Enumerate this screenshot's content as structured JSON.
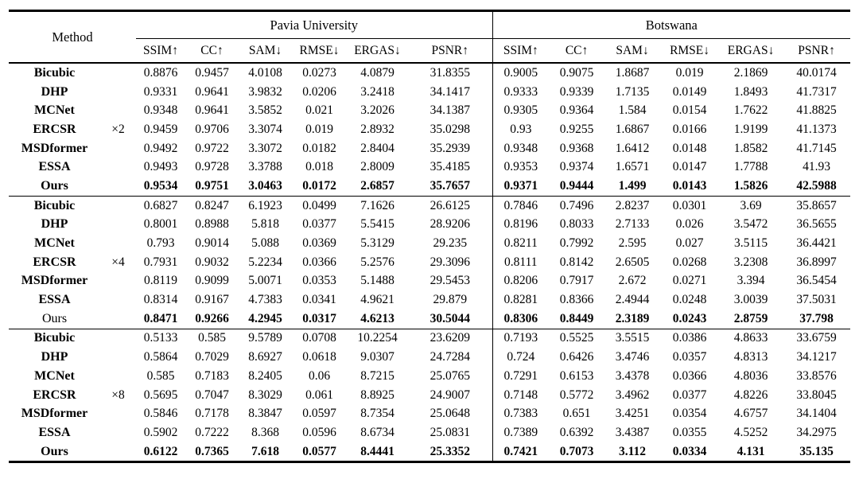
{
  "header": {
    "method_label": "Method",
    "groups": [
      {
        "label": "Pavia University"
      },
      {
        "label": "Botswana"
      }
    ],
    "metrics": [
      "SSIM↑",
      "CC↑",
      "SAM↓",
      "RMSE↓",
      "ERGAS↓",
      "PSNR↑"
    ]
  },
  "sections": [
    {
      "scale": "×2",
      "rows": [
        {
          "method": "Bicubic",
          "method_bold": true,
          "values_bold": false,
          "pavia": [
            "0.8876",
            "0.9457",
            "4.0108",
            "0.0273",
            "4.0879",
            "31.8355"
          ],
          "botswana": [
            "0.9005",
            "0.9075",
            "1.8687",
            "0.019",
            "2.1869",
            "40.0174"
          ]
        },
        {
          "method": "DHP",
          "method_bold": true,
          "values_bold": false,
          "pavia": [
            "0.9331",
            "0.9641",
            "3.9832",
            "0.0206",
            "3.2418",
            "34.1417"
          ],
          "botswana": [
            "0.9333",
            "0.9339",
            "1.7135",
            "0.0149",
            "1.8493",
            "41.7317"
          ]
        },
        {
          "method": "MCNet",
          "method_bold": true,
          "values_bold": false,
          "pavia": [
            "0.9348",
            "0.9641",
            "3.5852",
            "0.021",
            "3.2026",
            "34.1387"
          ],
          "botswana": [
            "0.9305",
            "0.9364",
            "1.584",
            "0.0154",
            "1.7622",
            "41.8825"
          ]
        },
        {
          "method": "ERCSR",
          "method_bold": true,
          "values_bold": false,
          "pavia": [
            "0.9459",
            "0.9706",
            "3.3074",
            "0.019",
            "2.8932",
            "35.0298"
          ],
          "botswana": [
            "0.93",
            "0.9255",
            "1.6867",
            "0.0166",
            "1.9199",
            "41.1373"
          ]
        },
        {
          "method": "MSDformer",
          "method_bold": true,
          "values_bold": false,
          "pavia": [
            "0.9492",
            "0.9722",
            "3.3072",
            "0.0182",
            "2.8404",
            "35.2939"
          ],
          "botswana": [
            "0.9348",
            "0.9368",
            "1.6412",
            "0.0148",
            "1.8582",
            "41.7145"
          ]
        },
        {
          "method": "ESSA",
          "method_bold": true,
          "values_bold": false,
          "pavia": [
            "0.9493",
            "0.9728",
            "3.3788",
            "0.018",
            "2.8009",
            "35.4185"
          ],
          "botswana": [
            "0.9353",
            "0.9374",
            "1.6571",
            "0.0147",
            "1.7788",
            "41.93"
          ]
        },
        {
          "method": "Ours",
          "method_bold": true,
          "values_bold": true,
          "pavia": [
            "0.9534",
            "0.9751",
            "3.0463",
            "0.0172",
            "2.6857",
            "35.7657"
          ],
          "botswana": [
            "0.9371",
            "0.9444",
            "1.499",
            "0.0143",
            "1.5826",
            "42.5988"
          ]
        }
      ]
    },
    {
      "scale": "×4",
      "rows": [
        {
          "method": "Bicubic",
          "method_bold": true,
          "values_bold": false,
          "pavia": [
            "0.6827",
            "0.8247",
            "6.1923",
            "0.0499",
            "7.1626",
            "26.6125"
          ],
          "botswana": [
            "0.7846",
            "0.7496",
            "2.8237",
            "0.0301",
            "3.69",
            "35.8657"
          ]
        },
        {
          "method": "DHP",
          "method_bold": true,
          "values_bold": false,
          "pavia": [
            "0.8001",
            "0.8988",
            "5.818",
            "0.0377",
            "5.5415",
            "28.9206"
          ],
          "botswana": [
            "0.8196",
            "0.8033",
            "2.7133",
            "0.026",
            "3.5472",
            "36.5655"
          ]
        },
        {
          "method": "MCNet",
          "method_bold": true,
          "values_bold": false,
          "pavia": [
            "0.793",
            "0.9014",
            "5.088",
            "0.0369",
            "5.3129",
            "29.235"
          ],
          "botswana": [
            "0.8211",
            "0.7992",
            "2.595",
            "0.027",
            "3.5115",
            "36.4421"
          ]
        },
        {
          "method": "ERCSR",
          "method_bold": true,
          "values_bold": false,
          "pavia": [
            "0.7931",
            "0.9032",
            "5.2234",
            "0.0366",
            "5.2576",
            "29.3096"
          ],
          "botswana": [
            "0.8111",
            "0.8142",
            "2.6505",
            "0.0268",
            "3.2308",
            "36.8997"
          ]
        },
        {
          "method": "MSDformer",
          "method_bold": true,
          "values_bold": false,
          "pavia": [
            "0.8119",
            "0.9099",
            "5.0071",
            "0.0353",
            "5.1488",
            "29.5453"
          ],
          "botswana": [
            "0.8206",
            "0.7917",
            "2.672",
            "0.0271",
            "3.394",
            "36.5454"
          ]
        },
        {
          "method": "ESSA",
          "method_bold": true,
          "values_bold": false,
          "pavia": [
            "0.8314",
            "0.9167",
            "4.7383",
            "0.0341",
            "4.9621",
            "29.879"
          ],
          "botswana": [
            "0.8281",
            "0.8366",
            "2.4944",
            "0.0248",
            "3.0039",
            "37.5031"
          ]
        },
        {
          "method": "Ours",
          "method_bold": false,
          "values_bold": true,
          "pavia": [
            "0.8471",
            "0.9266",
            "4.2945",
            "0.0317",
            "4.6213",
            "30.5044"
          ],
          "botswana": [
            "0.8306",
            "0.8449",
            "2.3189",
            "0.0243",
            "2.8759",
            "37.798"
          ]
        }
      ]
    },
    {
      "scale": "×8",
      "rows": [
        {
          "method": "Bicubic",
          "method_bold": true,
          "values_bold": false,
          "pavia": [
            "0.5133",
            "0.585",
            "9.5789",
            "0.0708",
            "10.2254",
            "23.6209"
          ],
          "botswana": [
            "0.7193",
            "0.5525",
            "3.5515",
            "0.0386",
            "4.8633",
            "33.6759"
          ]
        },
        {
          "method": "DHP",
          "method_bold": true,
          "values_bold": false,
          "pavia": [
            "0.5864",
            "0.7029",
            "8.6927",
            "0.0618",
            "9.0307",
            "24.7284"
          ],
          "botswana": [
            "0.724",
            "0.6426",
            "3.4746",
            "0.0357",
            "4.8313",
            "34.1217"
          ]
        },
        {
          "method": "MCNet",
          "method_bold": true,
          "values_bold": false,
          "pavia": [
            "0.585",
            "0.7183",
            "8.2405",
            "0.06",
            "8.7215",
            "25.0765"
          ],
          "botswana": [
            "0.7291",
            "0.6153",
            "3.4378",
            "0.0366",
            "4.8036",
            "33.8576"
          ]
        },
        {
          "method": "ERCSR",
          "method_bold": true,
          "values_bold": false,
          "pavia": [
            "0.5695",
            "0.7047",
            "8.3029",
            "0.061",
            "8.8925",
            "24.9007"
          ],
          "botswana": [
            "0.7148",
            "0.5772",
            "3.4962",
            "0.0377",
            "4.8226",
            "33.8045"
          ]
        },
        {
          "method": "MSDformer",
          "method_bold": true,
          "values_bold": false,
          "pavia": [
            "0.5846",
            "0.7178",
            "8.3847",
            "0.0597",
            "8.7354",
            "25.0648"
          ],
          "botswana": [
            "0.7383",
            "0.651",
            "3.4251",
            "0.0354",
            "4.6757",
            "34.1404"
          ]
        },
        {
          "method": "ESSA",
          "method_bold": true,
          "values_bold": false,
          "pavia": [
            "0.5902",
            "0.7222",
            "8.368",
            "0.0596",
            "8.6734",
            "25.0831"
          ],
          "botswana": [
            "0.7389",
            "0.6392",
            "3.4387",
            "0.0355",
            "4.5252",
            "34.2975"
          ]
        },
        {
          "method": "Ours",
          "method_bold": true,
          "values_bold": true,
          "pavia": [
            "0.6122",
            "0.7365",
            "7.618",
            "0.0577",
            "8.4441",
            "25.3352"
          ],
          "botswana": [
            "0.7421",
            "0.7073",
            "3.112",
            "0.0334",
            "4.131",
            "35.135"
          ]
        }
      ]
    }
  ]
}
